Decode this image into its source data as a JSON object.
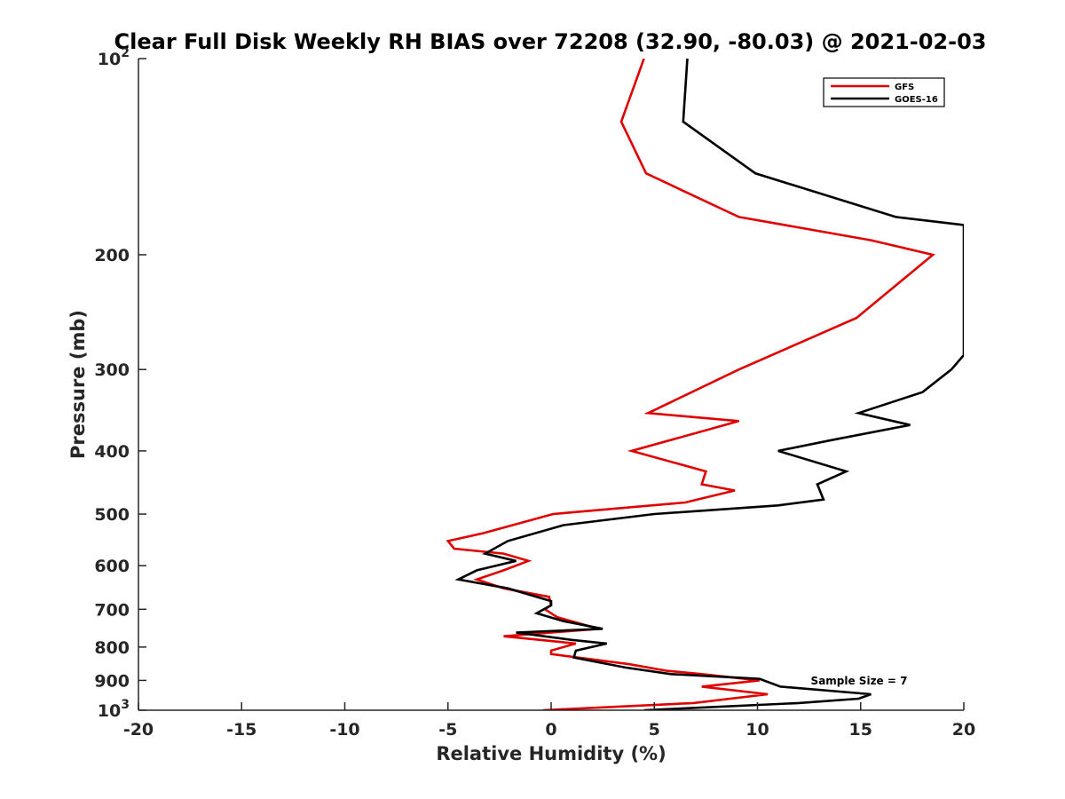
{
  "chart_data": {
    "type": "line",
    "title": "Clear Full Disk Weekly RH BIAS over 72208 (32.90, -80.03) @ 2021-02-03",
    "xlabel": "Relative Humidity (%)",
    "ylabel": "Pressure (mb)",
    "xlim": [
      -20,
      20
    ],
    "ylim": [
      100,
      1000
    ],
    "y_scale": "log",
    "y_reversed": true,
    "grid": false,
    "x_ticks": [
      "-20",
      "-15",
      "-10",
      "-5",
      "0",
      "5",
      "10",
      "15",
      "20"
    ],
    "y_tick_values": [
      100,
      200,
      300,
      400,
      500,
      600,
      700,
      800,
      900,
      1000
    ],
    "y_tick_labels": [
      {
        "base": "10",
        "exp": "2"
      },
      {
        "base": "200",
        "exp": ""
      },
      {
        "base": "300",
        "exp": ""
      },
      {
        "base": "400",
        "exp": ""
      },
      {
        "base": "500",
        "exp": ""
      },
      {
        "base": "600",
        "exp": ""
      },
      {
        "base": "700",
        "exp": ""
      },
      {
        "base": "800",
        "exp": ""
      },
      {
        "base": "900",
        "exp": ""
      },
      {
        "base": "10",
        "exp": "3"
      }
    ],
    "legend_position": "top-right",
    "annotation": "Sample Size = 7",
    "series": [
      {
        "name": "GFS",
        "color": "#e00000",
        "points": [
          [
            4.5,
            100
          ],
          [
            3.4,
            125
          ],
          [
            4.6,
            150
          ],
          [
            9.1,
            175
          ],
          [
            15.5,
            190
          ],
          [
            18.5,
            200
          ],
          [
            14.8,
            250
          ],
          [
            9.1,
            300
          ],
          [
            4.7,
            350
          ],
          [
            9.1,
            360
          ],
          [
            3.9,
            400
          ],
          [
            7.5,
            430
          ],
          [
            7.3,
            450
          ],
          [
            8.9,
            460
          ],
          [
            6.5,
            480
          ],
          [
            0.1,
            500
          ],
          [
            -3.3,
            535
          ],
          [
            -5.0,
            550
          ],
          [
            -4.7,
            565
          ],
          [
            -2.3,
            575
          ],
          [
            -1.1,
            590
          ],
          [
            -2.3,
            610
          ],
          [
            -3.6,
            630
          ],
          [
            -2.3,
            650
          ],
          [
            -0.1,
            670
          ],
          [
            0.0,
            690
          ],
          [
            -0.3,
            700
          ],
          [
            0.3,
            720
          ],
          [
            2.3,
            750
          ],
          [
            -2.3,
            770
          ],
          [
            1.2,
            790
          ],
          [
            0.0,
            810
          ],
          [
            0.0,
            820
          ],
          [
            3.8,
            850
          ],
          [
            5.6,
            870
          ],
          [
            7.3,
            880
          ],
          [
            10.1,
            900
          ],
          [
            7.3,
            920
          ],
          [
            10.5,
            945
          ],
          [
            6.9,
            975
          ],
          [
            -0.4,
            1000
          ]
        ]
      },
      {
        "name": "GOES-16",
        "color": "#000000",
        "points": [
          [
            6.6,
            100
          ],
          [
            6.4,
            125
          ],
          [
            9.9,
            150
          ],
          [
            16.7,
            175
          ],
          [
            20.0,
            180
          ],
          [
            20.0,
            285
          ],
          [
            19.4,
            300
          ],
          [
            18.0,
            325
          ],
          [
            14.9,
            350
          ],
          [
            17.4,
            365
          ],
          [
            13.6,
            385
          ],
          [
            11.0,
            400
          ],
          [
            14.3,
            430
          ],
          [
            12.9,
            450
          ],
          [
            13.2,
            475
          ],
          [
            11.0,
            485
          ],
          [
            5.0,
            500
          ],
          [
            0.6,
            520
          ],
          [
            -2.1,
            550
          ],
          [
            -3.2,
            575
          ],
          [
            -1.7,
            590
          ],
          [
            -3.6,
            610
          ],
          [
            -4.5,
            630
          ],
          [
            -2.1,
            650
          ],
          [
            0.0,
            680
          ],
          [
            0.0,
            690
          ],
          [
            -0.7,
            710
          ],
          [
            0.6,
            730
          ],
          [
            2.5,
            750
          ],
          [
            -1.7,
            760
          ],
          [
            1.0,
            780
          ],
          [
            2.7,
            790
          ],
          [
            1.2,
            810
          ],
          [
            1.1,
            830
          ],
          [
            3.6,
            860
          ],
          [
            5.8,
            880
          ],
          [
            10.1,
            895
          ],
          [
            11.1,
            920
          ],
          [
            15.5,
            945
          ],
          [
            14.9,
            960
          ],
          [
            12.0,
            975
          ],
          [
            4.5,
            1000
          ]
        ]
      }
    ]
  }
}
